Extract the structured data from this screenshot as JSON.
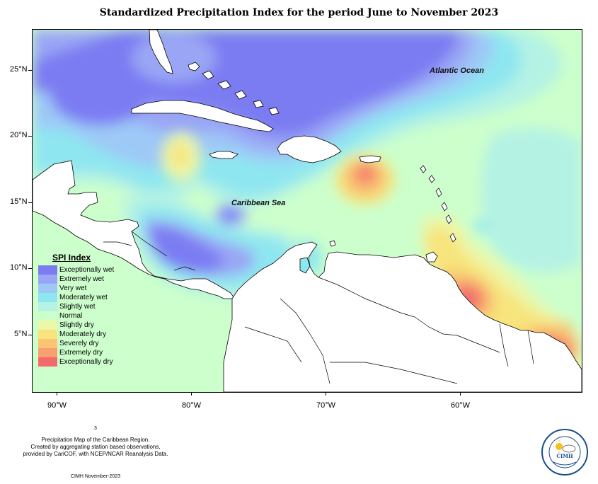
{
  "title": "Standardized Precipitation Index for the period June to November 2023",
  "map": {
    "labels": {
      "atlantic": "Atlantic Ocean",
      "caribbean": "Caribbean Sea"
    },
    "lat_ticks": [
      "25°N",
      "20°N",
      "15°N",
      "10°N",
      "5°N"
    ],
    "lon_ticks": [
      "90°W",
      "80°W",
      "70°W",
      "60°W"
    ]
  },
  "legend": {
    "title": "SPI Index",
    "items": [
      {
        "label": "Exceptionally wet",
        "color": "#7b7bf2"
      },
      {
        "label": "Extremely wet",
        "color": "#9aa6f5"
      },
      {
        "label": "Very wet",
        "color": "#9ec9f7"
      },
      {
        "label": "Moderately wet",
        "color": "#8ee6f0"
      },
      {
        "label": "Slightly wet",
        "color": "#b4f2e4"
      },
      {
        "label": "Normal",
        "color": "#ccffcc"
      },
      {
        "label": "Slightly dry",
        "color": "#ecf7a8"
      },
      {
        "label": "Moderately dry",
        "color": "#f7e47c"
      },
      {
        "label": "Severely dry",
        "color": "#f9c572"
      },
      {
        "label": "Extremely dry",
        "color": "#f8a070"
      },
      {
        "label": "Exceptionally dry",
        "color": "#f36a6a"
      }
    ]
  },
  "footer": {
    "page_number": "3",
    "line1": "Precipitation Map of the Caribbean Region.",
    "line2": "Created by aggregating station based observations,",
    "line3": "provided by CariCOF, with NCEP/NCAR Reanalysis Data.",
    "credit": "CIMH November-2023"
  },
  "logo": {
    "text": "CIMH",
    "icon": "sun-cloud-icon"
  }
}
